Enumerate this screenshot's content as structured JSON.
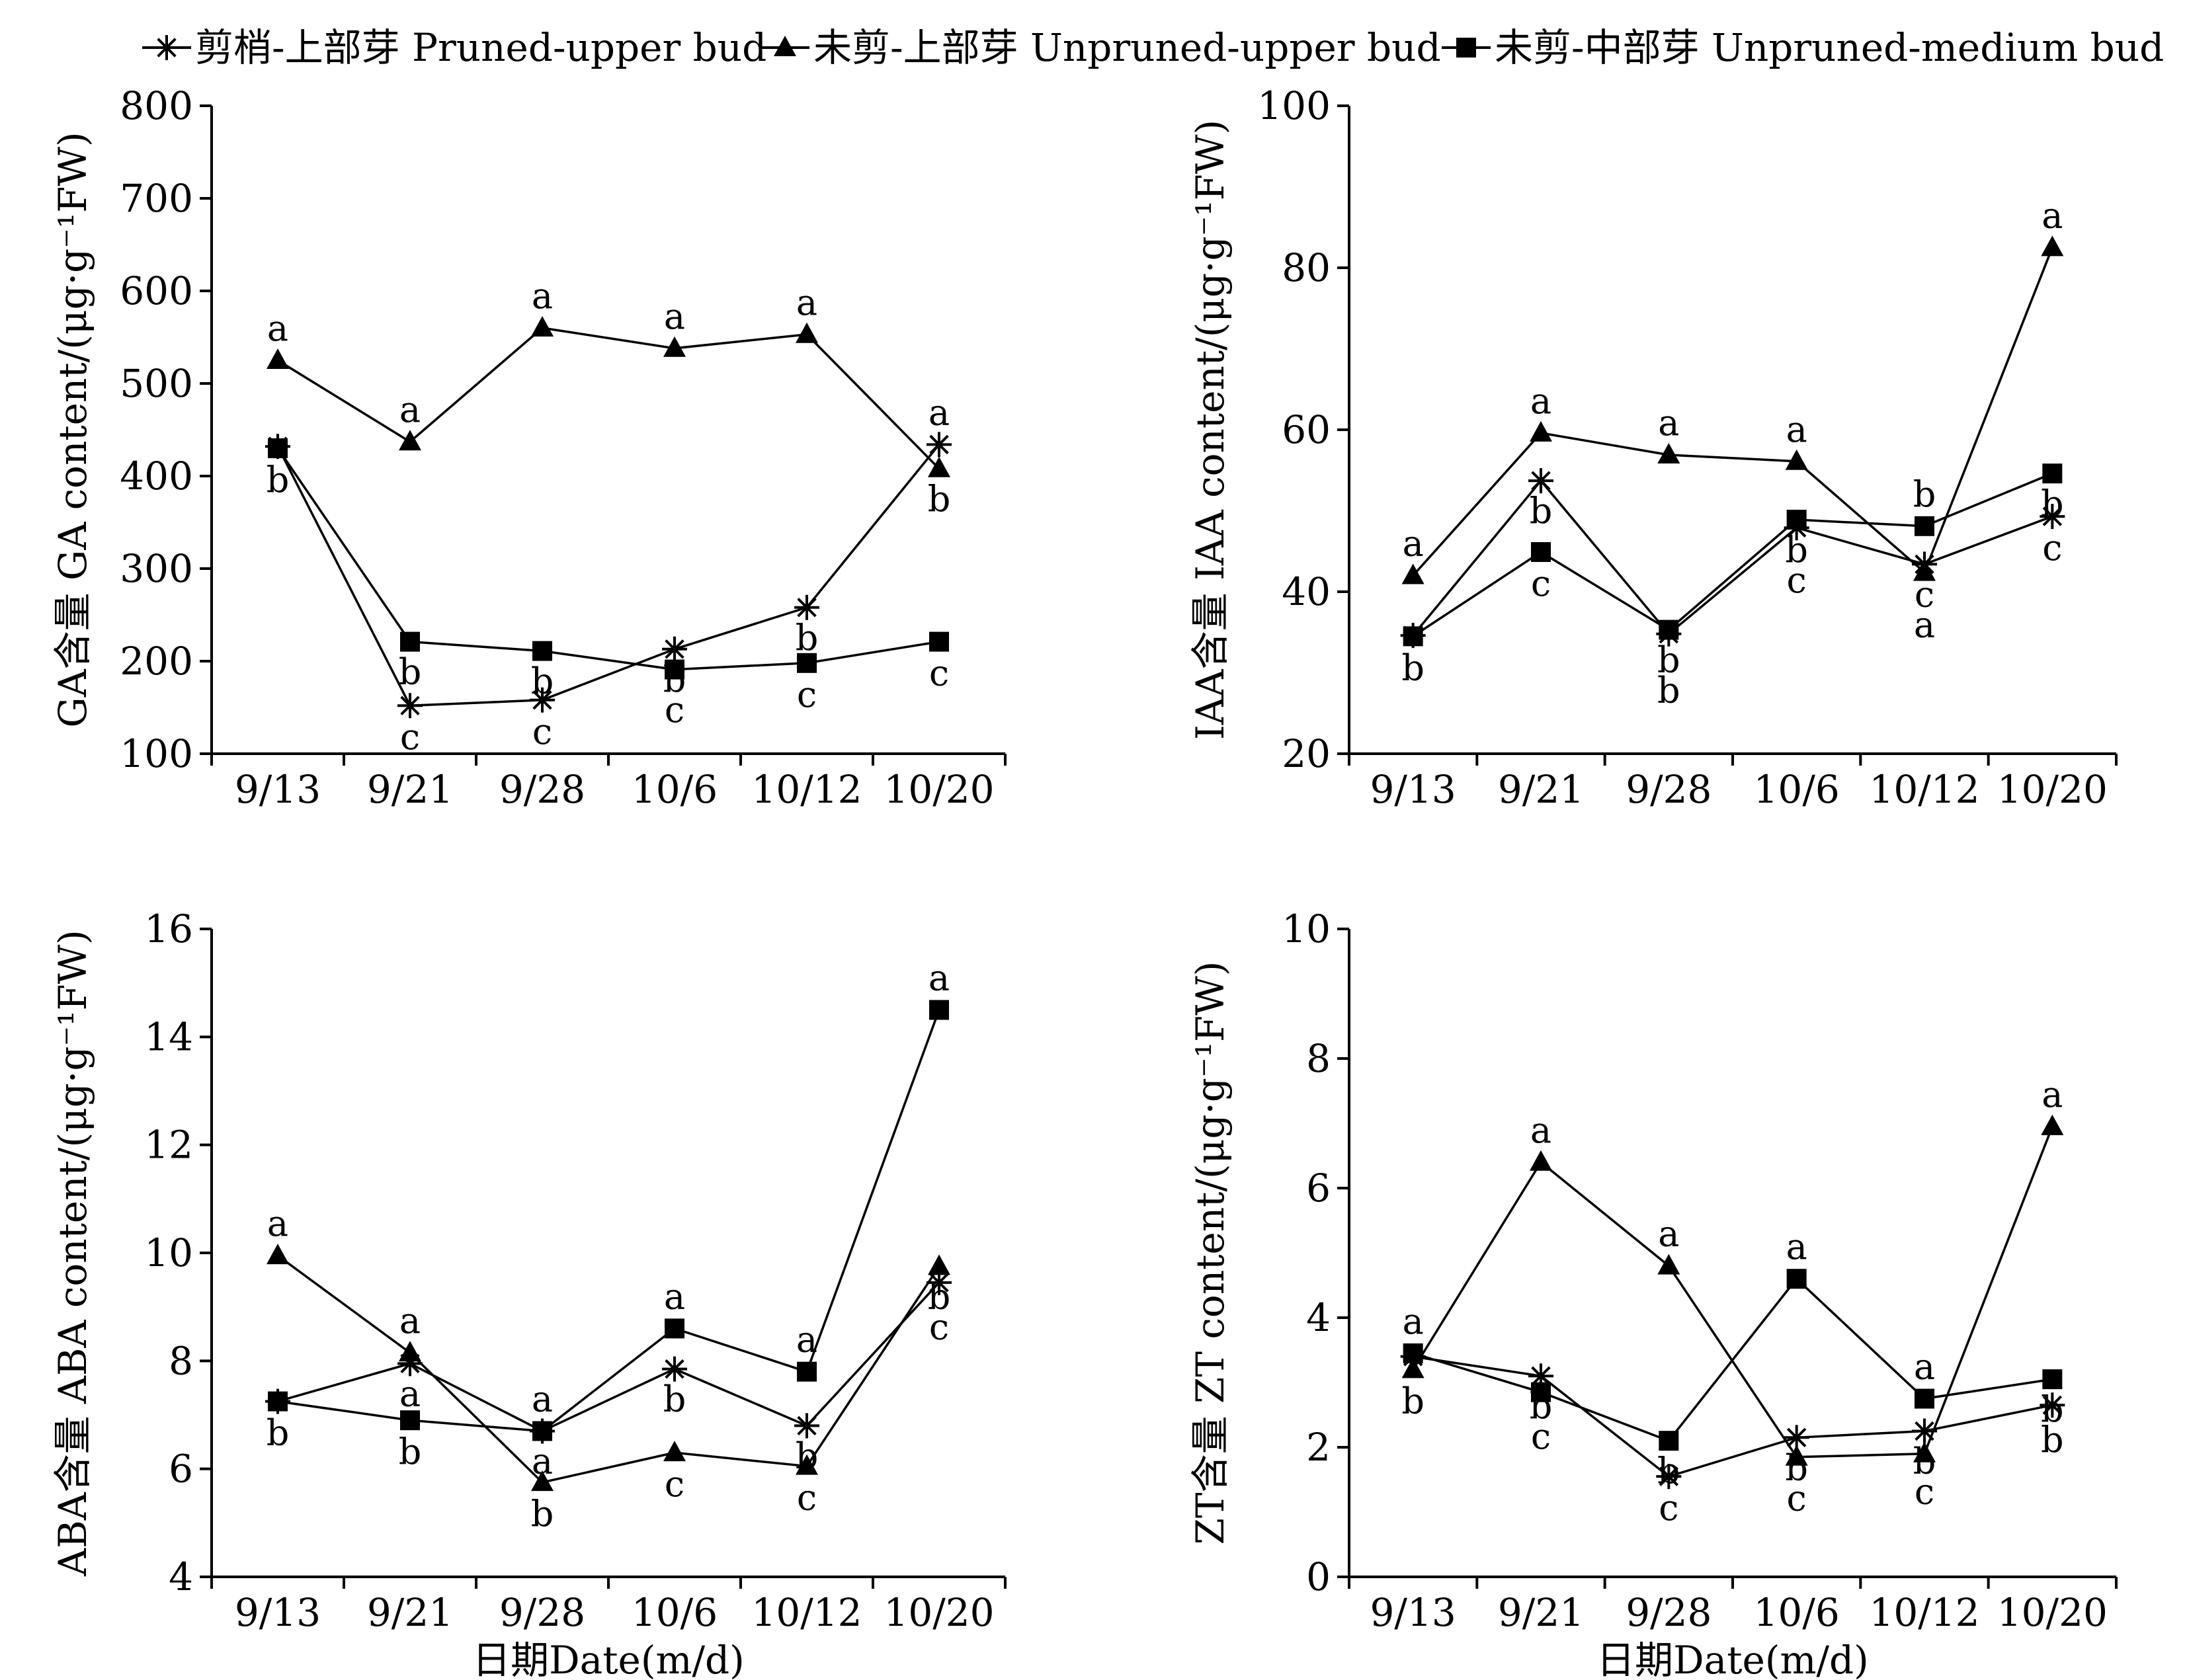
{
  "legend": [
    {
      "label": "剪梢-上部芽 Pruned-upper bud",
      "marker": "star"
    },
    {
      "label": "未剪-上部芽 Unpruned-upper bud",
      "marker": "triangle"
    },
    {
      "label": "未剪-中部芽 Unpruned-medium bud",
      "marker": "square"
    }
  ],
  "x_axis_title": "日期Date(m/d)",
  "colors": {
    "ink": "#000000",
    "background": "#ffffff"
  },
  "chart_data": [
    {
      "type": "line",
      "ylabel": "GA含量 GA content/(μg·g⁻¹FW)",
      "xlabel": "",
      "categories": [
        "9/13",
        "9/21",
        "9/28",
        "10/6",
        "10/12",
        "10/20"
      ],
      "ylim": [
        100,
        800
      ],
      "yticks": [
        100,
        200,
        300,
        400,
        500,
        600,
        700,
        800
      ],
      "series": [
        {
          "name": "剪梢-上部芽 Pruned-upper bud",
          "marker": "star",
          "values": [
            432,
            152,
            158,
            213,
            258,
            434
          ],
          "letters": [
            "",
            "c",
            "c",
            "b",
            "b",
            "a"
          ]
        },
        {
          "name": "未剪-上部芽 Unpruned-upper bud",
          "marker": "triangle",
          "values": [
            525,
            437,
            560,
            538,
            553,
            408
          ],
          "letters": [
            "a",
            "a",
            "a",
            "a",
            "a",
            "b"
          ]
        },
        {
          "name": "未剪-中部芽 Unpruned-medium bud",
          "marker": "square",
          "values": [
            430,
            221,
            211,
            191,
            198,
            221
          ],
          "letters": [
            "b",
            "b",
            "b",
            "c",
            "c",
            "c"
          ]
        }
      ]
    },
    {
      "type": "line",
      "ylabel": "IAA含量 IAA content/(μg·g⁻¹FW)",
      "xlabel": "",
      "categories": [
        "9/13",
        "9/21",
        "9/28",
        "10/6",
        "10/12",
        "10/20"
      ],
      "ylim": [
        20,
        100
      ],
      "yticks": [
        20,
        40,
        60,
        80,
        100
      ],
      "series": [
        {
          "name": "剪梢-上部芽 Pruned-upper bud",
          "marker": "star",
          "values": [
            34.6,
            53.7,
            34.8,
            47.9,
            43.4,
            49.3
          ],
          "letters": [
            "",
            "b",
            "b",
            "c",
            "c",
            "c"
          ]
        },
        {
          "name": "未剪-上部芽 Unpruned-upper bud",
          "marker": "triangle",
          "values": [
            42.0,
            59.6,
            56.9,
            56.1,
            42.4,
            82.5
          ],
          "letters": [
            "a",
            "a",
            "a",
            "a",
            "a",
            "a"
          ]
        },
        {
          "name": "未剪-中部芽 Unpruned-medium bud",
          "marker": "square",
          "values": [
            34.5,
            44.9,
            35.3,
            48.9,
            48.1,
            54.6
          ],
          "letters": [
            "b",
            "c",
            "b",
            "b",
            "b",
            "b"
          ]
        }
      ]
    },
    {
      "type": "line",
      "ylabel": "ABA含量 ABA content/(μg·g⁻¹FW)",
      "xlabel": "日期Date(m/d)",
      "categories": [
        "9/13",
        "9/21",
        "9/28",
        "10/6",
        "10/12",
        "10/20"
      ],
      "ylim": [
        4,
        16
      ],
      "yticks": [
        4,
        6,
        8,
        10,
        12,
        14,
        16
      ],
      "series": [
        {
          "name": "剪梢-上部芽 Pruned-upper bud",
          "marker": "star",
          "values": [
            7.25,
            7.95,
            6.7,
            7.85,
            6.8,
            9.45
          ],
          "letters": [
            "",
            "a",
            "a",
            "b",
            "b",
            "c"
          ]
        },
        {
          "name": "未剪-上部芽 Unpruned-upper bud",
          "marker": "triangle",
          "values": [
            9.95,
            8.15,
            5.75,
            6.3,
            6.05,
            9.75
          ],
          "letters": [
            "a",
            "a",
            "b",
            "c",
            "c",
            "b"
          ]
        },
        {
          "name": "未剪-中部芽 Unpruned-medium bud",
          "marker": "square",
          "values": [
            7.25,
            6.9,
            6.7,
            8.6,
            7.8,
            14.5
          ],
          "letters": [
            "b",
            "b",
            "a",
            "a",
            "a",
            "a"
          ]
        }
      ]
    },
    {
      "type": "line",
      "ylabel": "ZT含量 ZT content/(μg·g⁻¹FW)",
      "xlabel": "日期Date(m/d)",
      "categories": [
        "9/13",
        "9/21",
        "9/28",
        "10/6",
        "10/12",
        "10/20"
      ],
      "ylim": [
        0,
        10
      ],
      "yticks": [
        0,
        2,
        4,
        6,
        8,
        10
      ],
      "series": [
        {
          "name": "剪梢-上部芽 Pruned-upper bud",
          "marker": "star",
          "values": [
            3.4,
            3.1,
            1.55,
            2.15,
            2.25,
            2.65
          ],
          "letters": [
            "",
            "b",
            "c",
            "b",
            "b",
            "b"
          ]
        },
        {
          "name": "未剪-上部芽 Unpruned-upper bud",
          "marker": "triangle",
          "values": [
            3.2,
            6.4,
            4.8,
            1.85,
            1.9,
            6.95
          ],
          "letters": [
            "b",
            "a",
            "a",
            "c",
            "c",
            "a"
          ]
        },
        {
          "name": "未剪-中部芽 Unpruned-medium bud",
          "marker": "square",
          "values": [
            3.45,
            2.85,
            2.1,
            4.6,
            2.75,
            3.05
          ],
          "letters": [
            "a",
            "c",
            "b",
            "a",
            "a",
            "b"
          ]
        }
      ]
    }
  ]
}
